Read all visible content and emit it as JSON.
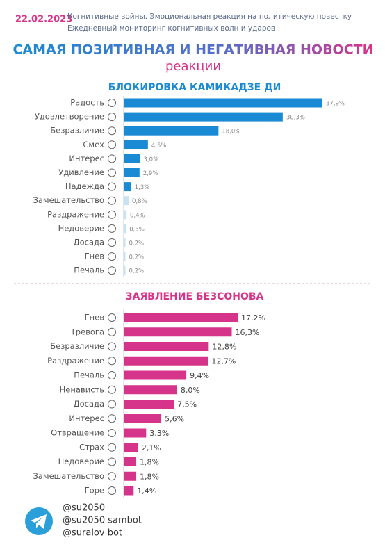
{
  "header": {
    "date": "22.02.2023",
    "subtitle": [
      "Когнитивные войны. Эмоциональная реакция на политическую повестку",
      "Ежедневный мониторинг когнитивных волн и ударов"
    ],
    "title": "САМАЯ ПОЗИТИВНАЯ И НЕГАТИВНАЯ НОВОСТИ",
    "title_sub": "реакции"
  },
  "chart_data": [
    {
      "type": "bar",
      "orientation": "horizontal",
      "title": "БЛОКИРОВКА КАМИКАДЗЕ ДИ",
      "color": "#1a8ad4",
      "categories": [
        "Радость",
        "Удовлетворение",
        "Безразличие",
        "Смех",
        "Интерес",
        "Удивление",
        "Надежда",
        "Замешательство",
        "Раздражение",
        "Недоверие",
        "Досада",
        "Гнев",
        "Печаль"
      ],
      "values": [
        37.9,
        30.3,
        18.0,
        4.5,
        3.0,
        2.9,
        1.3,
        0.8,
        0.4,
        0.3,
        0.2,
        0.2,
        0.2
      ],
      "value_labels": [
        "37,9%",
        "30,3%",
        "18,0%",
        "4,5%",
        "3,0%",
        "2,9%",
        "1,3%",
        "0,8%",
        "0,4%",
        "0,3%",
        "0,2%",
        "0,2%",
        "0,2%"
      ]
    },
    {
      "type": "bar",
      "orientation": "horizontal",
      "title": "ЗАЯВЛЕНИЕ БЕЗСОНОВА",
      "color": "#d6348a",
      "categories": [
        "Гнев",
        "Тревога",
        "Безразличие",
        "Раздражение",
        "Печаль",
        "Ненависть",
        "Досада",
        "Интерес",
        "Отвращение",
        "Страх",
        "Недоверие",
        "Замешательство",
        "Горе"
      ],
      "values": [
        17.2,
        16.3,
        12.8,
        12.7,
        9.4,
        8.0,
        7.5,
        5.6,
        3.3,
        2.1,
        1.8,
        1.8,
        1.4
      ],
      "value_labels": [
        "17,2%",
        "16,3%",
        "12,8%",
        "12,7%",
        "9,4%",
        "8,0%",
        "7,5%",
        "5,6%",
        "3,3%",
        "2,1%",
        "1,8%",
        "1,8%",
        "1,4%"
      ]
    }
  ],
  "footer": {
    "handles": [
      "@su2050",
      "@su2050 sambot",
      "@suralov bot"
    ]
  }
}
